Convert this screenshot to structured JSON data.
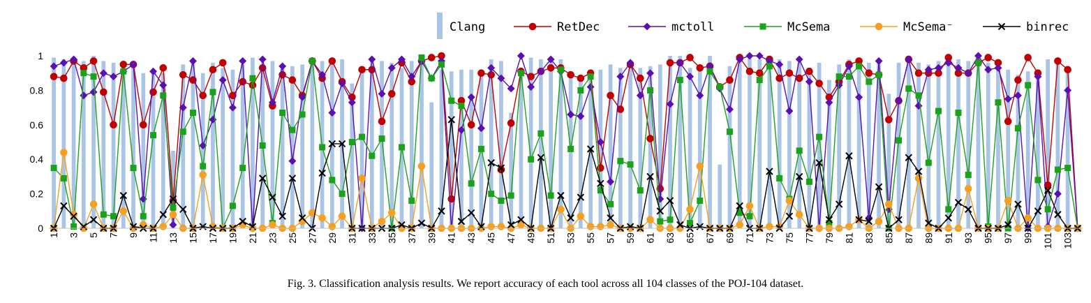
{
  "caption": "Fig. 3.  Classification analysis results. We report accuracy of each tool across all 104 classes of the POJ-104 dataset.",
  "chart_data": {
    "type": "bar+line",
    "title": "",
    "xlabel": "",
    "ylabel": "",
    "ylim": [
      0,
      1
    ],
    "yticks": [
      "0",
      "0.2",
      "0.4",
      "0.6",
      "0.8",
      "1"
    ],
    "grid": false,
    "legend_position": "top",
    "x": [
      1,
      2,
      3,
      4,
      5,
      6,
      7,
      8,
      9,
      10,
      11,
      12,
      13,
      14,
      15,
      16,
      17,
      18,
      19,
      20,
      21,
      22,
      23,
      24,
      25,
      26,
      27,
      28,
      29,
      30,
      31,
      32,
      33,
      34,
      35,
      36,
      37,
      38,
      39,
      40,
      41,
      42,
      43,
      44,
      45,
      46,
      47,
      48,
      49,
      50,
      51,
      52,
      53,
      54,
      55,
      56,
      57,
      58,
      59,
      60,
      61,
      62,
      63,
      64,
      65,
      66,
      67,
      68,
      69,
      70,
      71,
      72,
      73,
      74,
      75,
      76,
      77,
      78,
      79,
      80,
      81,
      82,
      83,
      84,
      85,
      86,
      87,
      88,
      89,
      90,
      91,
      92,
      93,
      94,
      95,
      96,
      97,
      98,
      99,
      100,
      101,
      102,
      103,
      104
    ],
    "xtick_labels": [
      "1",
      "3",
      "5",
      "7",
      "9",
      "11",
      "13",
      "15",
      "17",
      "19",
      "21",
      "23",
      "25",
      "27",
      "29",
      "31",
      "33",
      "35",
      "37",
      "39",
      "41",
      "43",
      "45",
      "47",
      "49",
      "51",
      "53",
      "55",
      "57",
      "59",
      "61",
      "63",
      "65",
      "67",
      "69",
      "71",
      "73",
      "75",
      "77",
      "79",
      "81",
      "83",
      "85",
      "87",
      "89",
      "91",
      "93",
      "95",
      "97",
      "99",
      "101",
      "103"
    ],
    "series": [
      {
        "name": "Clang",
        "kind": "bar",
        "color": "#a9c4e4",
        "values": [
          0.99,
          0.98,
          0.99,
          0.97,
          1.0,
          0.97,
          0.96,
          0.96,
          0.94,
          0.9,
          0.9,
          0.9,
          0.45,
          0.95,
          0.96,
          0.9,
          0.96,
          0.93,
          0.92,
          0.95,
          0.99,
          0.95,
          0.97,
          0.93,
          0.94,
          0.95,
          0.95,
          0.97,
          0.97,
          0.98,
          0.84,
          0.93,
          0.98,
          0.97,
          0.96,
          0.93,
          0.97,
          0.96,
          0.73,
          0.92,
          0.91,
          0.92,
          0.92,
          0.89,
          0.98,
          0.97,
          0.67,
          0.9,
          0.99,
          0.98,
          0.99,
          0.98,
          0.89,
          0.88,
          0.88,
          0.92,
          0.95,
          0.93,
          0.95,
          0.93,
          0.94,
          0.95,
          1.0,
          1.0,
          0.93,
          0.93,
          1.0,
          0.37,
          0.94,
          0.98,
          1.0,
          0.98,
          1.0,
          0.98,
          0.97,
          0.96,
          0.93,
          0.96,
          0.86,
          0.95,
          0.98,
          0.97,
          0.96,
          0.97,
          0.78,
          0.96,
          0.97,
          0.96,
          0.95,
          0.97,
          0.97,
          0.98,
          0.97,
          0.99,
          0.96,
          0.94,
          0.92,
          0.89,
          0.91,
          0.92,
          0.98,
          0.98,
          0.94,
          0.0
        ]
      },
      {
        "name": "RetDec",
        "kind": "line",
        "color": "#c00000",
        "marker": "circle",
        "values": [
          0.88,
          0.87,
          0.97,
          0.93,
          0.97,
          0.79,
          0.6,
          0.95,
          0.95,
          0.6,
          0.79,
          0.93,
          0.16,
          0.89,
          0.86,
          0.77,
          0.92,
          0.96,
          0.77,
          0.85,
          0.83,
          0.93,
          0.71,
          0.89,
          0.86,
          0.77,
          0.97,
          0.87,
          0.97,
          0.85,
          0.76,
          0.92,
          0.92,
          0.62,
          0.78,
          0.96,
          0.85,
          0.97,
          0.99,
          1.0,
          0.17,
          0.74,
          0.6,
          0.9,
          0.89,
          0.34,
          0.61,
          0.91,
          0.88,
          0.91,
          0.93,
          0.93,
          0.89,
          0.87,
          0.9,
          0.35,
          0.77,
          0.69,
          0.95,
          0.87,
          0.52,
          0.23,
          0.96,
          0.96,
          0.99,
          0.93,
          0.94,
          0.82,
          0.86,
          0.99,
          0.91,
          0.9,
          0.98,
          0.87,
          0.9,
          0.87,
          0.91,
          0.84,
          0.76,
          0.85,
          0.95,
          0.97,
          0.9,
          0.89,
          0.63,
          0.74,
          0.98,
          0.9,
          0.9,
          0.9,
          0.99,
          0.9,
          0.9,
          0.96,
          0.99,
          0.96,
          0.62,
          0.86,
          0.99,
          0.9,
          0.25,
          0.97,
          0.92,
          0.0
        ]
      },
      {
        "name": "mctoll",
        "kind": "line",
        "color": "#5b0fb0",
        "marker": "diamond",
        "values": [
          0.94,
          0.96,
          0.98,
          0.77,
          0.79,
          0.9,
          0.88,
          0.91,
          0.95,
          0.17,
          0.91,
          0.83,
          0.02,
          0.7,
          0.97,
          0.48,
          0.63,
          0.86,
          0.7,
          0.97,
          0.0,
          0.98,
          0.73,
          0.94,
          0.39,
          0.76,
          0.97,
          0.89,
          0.67,
          0.84,
          0.73,
          0.0,
          0.98,
          0.78,
          0.93,
          0.98,
          0.88,
          0.97,
          0.87,
          0.97,
          0.0,
          0.57,
          0.76,
          0.58,
          0.93,
          0.87,
          0.81,
          1.0,
          0.82,
          0.91,
          0.98,
          0.91,
          0.66,
          0.65,
          0.82,
          0.5,
          0.27,
          0.88,
          0.96,
          0.77,
          0.9,
          0.17,
          0.72,
          0.96,
          0.88,
          0.77,
          0.94,
          0.81,
          0.69,
          0.98,
          1.0,
          1.0,
          0.97,
          0.95,
          0.68,
          0.98,
          0.85,
          0.0,
          0.73,
          0.83,
          0.94,
          0.76,
          0.06,
          0.97,
          0.11,
          0.74,
          0.98,
          0.71,
          0.92,
          0.93,
          0.96,
          0.93,
          0.9,
          1.0,
          0.92,
          0.93,
          0.75,
          0.77,
          0.0,
          0.88,
          0.01,
          0.2,
          0.8,
          0.0
        ]
      },
      {
        "name": "McSema",
        "kind": "line",
        "color": "#1aa31a",
        "marker": "square",
        "values": [
          0.35,
          0.29,
          0.01,
          0.9,
          0.88,
          0.08,
          0.07,
          0.91,
          0.35,
          0.07,
          0.54,
          0.77,
          0.12,
          0.56,
          0.67,
          0.36,
          0.79,
          0.0,
          0.13,
          0.35,
          0.87,
          0.48,
          0.03,
          0.67,
          0.57,
          0.66,
          0.97,
          0.47,
          0.28,
          0.2,
          0.5,
          0.53,
          0.42,
          0.52,
          0.0,
          0.47,
          0.16,
          0.99,
          0.87,
          0.95,
          0.74,
          0.71,
          0.26,
          0.46,
          0.2,
          0.16,
          0.19,
          0.9,
          0.4,
          0.55,
          0.19,
          0.92,
          0.46,
          0.8,
          0.88,
          0.22,
          0.14,
          0.39,
          0.37,
          0.22,
          0.8,
          0.04,
          0.05,
          0.86,
          0.03,
          0.16,
          0.91,
          0.82,
          0.56,
          0.09,
          0.07,
          0.86,
          0.94,
          0.29,
          0.17,
          0.45,
          0.27,
          0.53,
          0.03,
          0.88,
          0.88,
          0.94,
          0.85,
          0.89,
          0.0,
          0.51,
          0.81,
          0.77,
          0.38,
          0.68,
          0.11,
          0.67,
          0.31,
          0.96,
          0.01,
          0.73,
          0.0,
          0.58,
          0.83,
          0.28,
          0.11,
          0.34,
          0.35,
          0.0
        ]
      },
      {
        "name": "McSema⁻",
        "kind": "line",
        "color": "#f5a020",
        "marker": "circle",
        "values": [
          0.0,
          0.44,
          0.08,
          0.0,
          0.14,
          0.0,
          0.0,
          0.1,
          0.0,
          0.02,
          0.0,
          0.01,
          0.08,
          0.0,
          0.0,
          0.31,
          0.01,
          0.0,
          0.0,
          0.02,
          0.0,
          0.0,
          0.02,
          0.0,
          0.0,
          0.04,
          0.09,
          0.06,
          0.01,
          0.07,
          0.0,
          0.29,
          0.0,
          0.04,
          0.09,
          0.0,
          0.0,
          0.36,
          0.0,
          0.0,
          0.0,
          0.0,
          0.0,
          0.0,
          0.01,
          0.01,
          0.0,
          0.02,
          0.0,
          0.0,
          0.0,
          0.11,
          0.0,
          0.07,
          0.01,
          0.01,
          0.02,
          0.0,
          0.0,
          0.0,
          0.05,
          0.0,
          0.0,
          0.0,
          0.11,
          0.36,
          0.0,
          0.0,
          0.0,
          0.02,
          0.13,
          0.0,
          0.01,
          0.01,
          0.16,
          0.08,
          0.0,
          0.0,
          0.0,
          0.0,
          0.01,
          0.05,
          0.0,
          0.04,
          0.14,
          0.0,
          0.0,
          0.29,
          0.0,
          0.0,
          0.0,
          0.0,
          0.23,
          0.0,
          0.0,
          0.0,
          0.16,
          0.0,
          0.06,
          0.0,
          0.0,
          0.0,
          0.0,
          0.0
        ]
      },
      {
        "name": "binrec",
        "kind": "line",
        "color": "#000000",
        "marker": "x",
        "values": [
          0.0,
          0.13,
          0.07,
          0.01,
          0.05,
          0.0,
          0.0,
          0.19,
          0.01,
          0.0,
          0.0,
          0.08,
          0.17,
          0.11,
          0.0,
          0.01,
          0.0,
          0.0,
          0.0,
          0.04,
          0.01,
          0.29,
          0.18,
          0.07,
          0.29,
          0.06,
          0.0,
          0.32,
          0.49,
          0.49,
          0.0,
          0.0,
          0.0,
          0.0,
          0.0,
          0.02,
          0.0,
          0.03,
          0.0,
          0.1,
          0.63,
          0.04,
          0.09,
          0.01,
          0.38,
          0.35,
          0.02,
          0.05,
          0.0,
          0.41,
          0.0,
          0.19,
          0.06,
          0.18,
          0.46,
          0.26,
          0.06,
          0.0,
          0.01,
          0.0,
          0.3,
          0.1,
          0.16,
          0.02,
          0.0,
          0.01,
          0.0,
          0.0,
          0.0,
          0.13,
          0.0,
          0.0,
          0.33,
          0.0,
          0.07,
          0.3,
          0.0,
          0.38,
          0.05,
          0.14,
          0.42,
          0.05,
          0.04,
          0.24,
          0.0,
          0.05,
          0.41,
          0.33,
          0.03,
          0.0,
          0.06,
          0.15,
          0.11,
          0.0,
          0.0,
          0.0,
          0.02,
          0.14,
          0.0,
          0.1,
          0.22,
          0.08,
          0.0,
          0.0
        ]
      }
    ]
  }
}
